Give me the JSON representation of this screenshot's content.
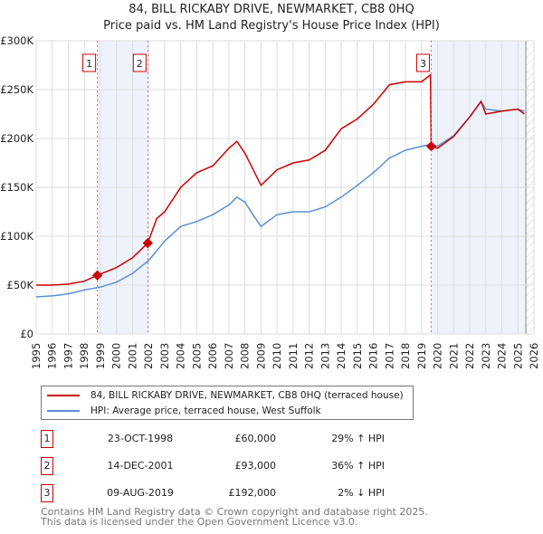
{
  "title": "84, BILL RICKABY DRIVE, NEWMARKET, CB8 0HQ",
  "subtitle": "Price paid vs. HM Land Registry's House Price Index (HPI)",
  "chart_data": {
    "type": "line",
    "xlim": [
      1995,
      2026
    ],
    "ylim": [
      0,
      300000
    ],
    "yticks": [
      0,
      50000,
      100000,
      150000,
      200000,
      250000,
      300000
    ],
    "ytick_labels": [
      "£0",
      "£50K",
      "£100K",
      "£150K",
      "£200K",
      "£250K",
      "£300K"
    ],
    "xticks": [
      "1995",
      "1996",
      "1997",
      "1998",
      "1999",
      "2000",
      "2001",
      "2002",
      "2003",
      "2004",
      "2005",
      "2006",
      "2007",
      "2008",
      "2009",
      "2010",
      "2011",
      "2012",
      "2013",
      "2014",
      "2015",
      "2016",
      "2017",
      "2018",
      "2019",
      "2020",
      "2021",
      "2022",
      "2023",
      "2024",
      "2025",
      "2026"
    ],
    "grid": true,
    "series": [
      {
        "name": "84, BILL RICKABY DRIVE, NEWMARKET, CB8 0HQ (terraced house)",
        "color": "#cc0000",
        "x": [
          1995,
          1996,
          1997,
          1998,
          1998.8,
          2000,
          2001,
          2001.95,
          2002.5,
          2003,
          2004,
          2005,
          2006,
          2007,
          2007.5,
          2008,
          2009,
          2010,
          2011,
          2012,
          2013,
          2014,
          2015,
          2016,
          2017,
          2018,
          2019,
          2019.55,
          2019.6,
          2020,
          2021,
          2022,
          2022.7,
          2023,
          2024,
          2025,
          2025.4
        ],
        "y": [
          50000,
          50000,
          51000,
          54000,
          60000,
          68000,
          78000,
          93000,
          118000,
          125000,
          150000,
          165000,
          172000,
          190000,
          197000,
          185000,
          152000,
          168000,
          175000,
          178000,
          188000,
          210000,
          220000,
          235000,
          255000,
          258000,
          258000,
          265000,
          192000,
          190000,
          202000,
          222000,
          238000,
          225000,
          228000,
          230000,
          225000
        ]
      },
      {
        "name": "HPI: Average price, terraced house, West Suffolk",
        "color": "#5b8fd6",
        "x": [
          1995,
          1996,
          1997,
          1998,
          1999,
          2000,
          2001,
          2002,
          2003,
          2004,
          2005,
          2006,
          2007,
          2007.5,
          2008,
          2008.5,
          2009,
          2010,
          2011,
          2012,
          2013,
          2014,
          2015,
          2016,
          2017,
          2018,
          2019,
          2019.6,
          2020,
          2021,
          2022,
          2022.7,
          2023,
          2024,
          2025,
          2025.4
        ],
        "y": [
          38000,
          39000,
          41000,
          45000,
          48000,
          53000,
          62000,
          75000,
          95000,
          110000,
          115000,
          122000,
          132000,
          140000,
          135000,
          122000,
          110000,
          122000,
          125000,
          125000,
          130000,
          140000,
          152000,
          165000,
          180000,
          188000,
          192000,
          194000,
          192000,
          203000,
          222000,
          238000,
          230000,
          228000,
          230000,
          228000
        ]
      }
    ],
    "sales": [
      {
        "label": "1",
        "x": 1998.81,
        "y": 60000,
        "date": "23-OCT-1998",
        "price": "£60,000",
        "hpi": "29% ↑ HPI"
      },
      {
        "label": "2",
        "x": 2001.95,
        "y": 93000,
        "date": "14-DEC-2001",
        "price": "£93,000",
        "hpi": "36% ↑ HPI"
      },
      {
        "label": "3",
        "x": 2019.6,
        "y": 192000,
        "date": "09-AUG-2019",
        "price": "£192,000",
        "hpi": "2% ↓ HPI"
      }
    ],
    "legend_position": "bottom"
  },
  "footer": [
    "Contains HM Land Registry data © Crown copyright and database right 2025.",
    "This data is licensed under the Open Government Licence v3.0."
  ]
}
